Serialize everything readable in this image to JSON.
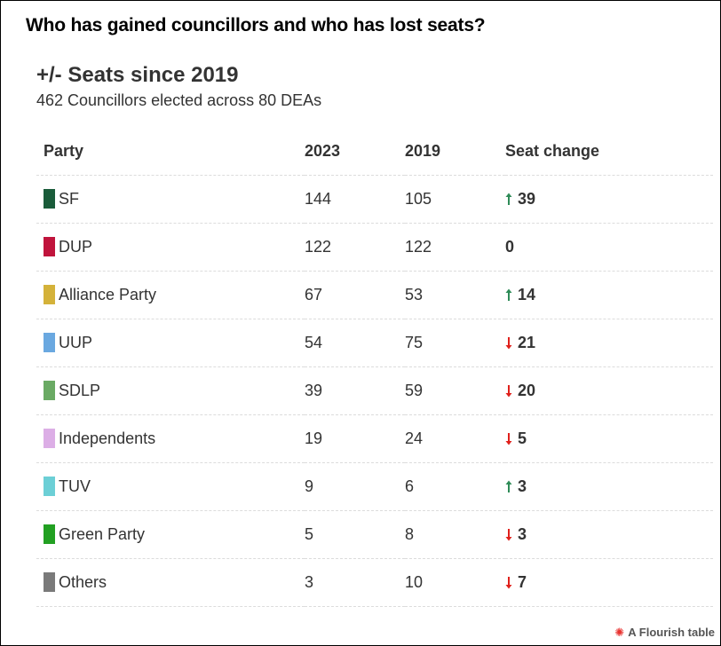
{
  "headline": "Who has gained councillors and who has lost seats?",
  "title": "+/- Seats since 2019",
  "subtitle": "462 Councillors elected across 80 DEAs",
  "columns": [
    "Party",
    "2023",
    "2019",
    "Seat change"
  ],
  "colors": {
    "up": "#2e8b57",
    "down": "#e0201b"
  },
  "rows": [
    {
      "party": "SF",
      "color": "#1a5c3a",
      "y2023": "144",
      "y2019": "105",
      "direction": "up",
      "change": "39"
    },
    {
      "party": "DUP",
      "color": "#c0143c",
      "y2023": "122",
      "y2019": "122",
      "direction": "none",
      "change": "0"
    },
    {
      "party": "Alliance Party",
      "color": "#d4b23a",
      "y2023": "67",
      "y2019": "53",
      "direction": "up",
      "change": "14"
    },
    {
      "party": "UUP",
      "color": "#6aa8e0",
      "y2023": "54",
      "y2019": "75",
      "direction": "down",
      "change": "21"
    },
    {
      "party": "SDLP",
      "color": "#6aaa64",
      "y2023": "39",
      "y2019": "59",
      "direction": "down",
      "change": "20"
    },
    {
      "party": "Independents",
      "color": "#dcaee6",
      "y2023": "19",
      "y2019": "24",
      "direction": "down",
      "change": "5"
    },
    {
      "party": "TUV",
      "color": "#6ccfd6",
      "y2023": "9",
      "y2019": "6",
      "direction": "up",
      "change": "3"
    },
    {
      "party": "Green Party",
      "color": "#22a022",
      "y2023": "5",
      "y2019": "8",
      "direction": "down",
      "change": "3"
    },
    {
      "party": "Others",
      "color": "#7a7a7a",
      "y2023": "3",
      "y2019": "10",
      "direction": "down",
      "change": "7"
    }
  ],
  "credit": "A Flourish table",
  "credit_icon": "flourish-star-icon"
}
